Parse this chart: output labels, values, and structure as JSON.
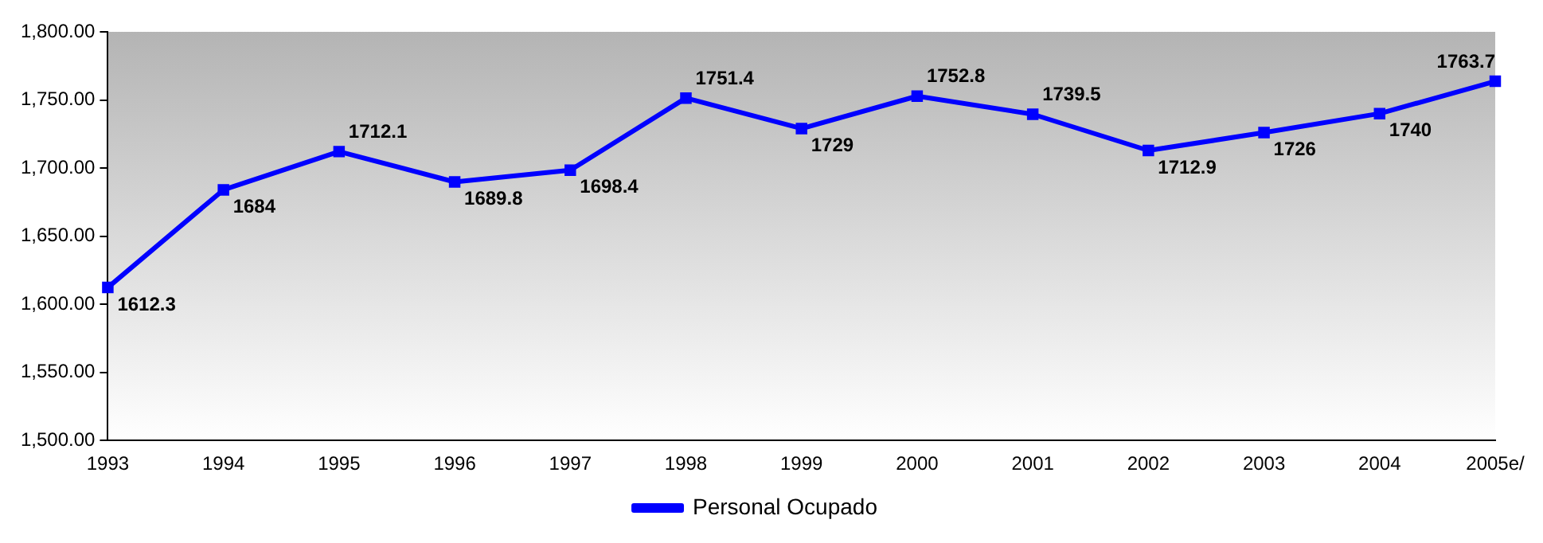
{
  "chart_data": {
    "type": "line",
    "categories": [
      "1993",
      "1994",
      "1995",
      "1996",
      "1997",
      "1998",
      "1999",
      "2000",
      "2001",
      "2002",
      "2003",
      "2004",
      "2005e/"
    ],
    "series": [
      {
        "name": "Personal Ocupado",
        "color": "#0000ff",
        "values": [
          1612.3,
          1684,
          1712.1,
          1689.8,
          1698.4,
          1751.4,
          1729,
          1752.8,
          1739.5,
          1712.9,
          1726,
          1740,
          1763.7
        ]
      }
    ],
    "ylim": [
      1500,
      1800
    ],
    "yticks": [
      {
        "value": 1500,
        "label": "1,500.00"
      },
      {
        "value": 1550,
        "label": "1,550.00"
      },
      {
        "value": 1600,
        "label": "1,600.00"
      },
      {
        "value": 1650,
        "label": "1,650.00"
      },
      {
        "value": 1700,
        "label": "1,700.00"
      },
      {
        "value": 1750,
        "label": "1,750.00"
      },
      {
        "value": 1800,
        "label": "1,800.00"
      }
    ],
    "grid": false,
    "legend": "bottom",
    "marker": "square",
    "line_style": "solid",
    "data_labels": true
  }
}
